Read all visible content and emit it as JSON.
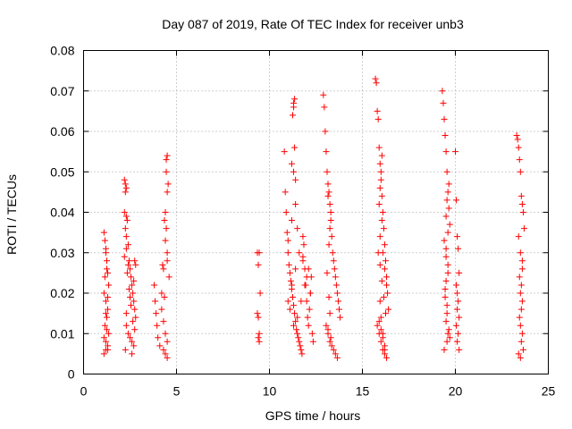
{
  "chart_data": {
    "type": "scatter",
    "title": "Day 087 of 2019, Rate Of TEC Index for receiver unb3",
    "xlabel": "GPS time / hours",
    "ylabel": "ROTI / TECUs",
    "xlim": [
      0,
      25
    ],
    "ylim": [
      0,
      0.08
    ],
    "xticks": [
      "0",
      "5",
      "10",
      "15",
      "20",
      "25"
    ],
    "yticks": [
      "0",
      "0.01",
      "0.02",
      "0.03",
      "0.04",
      "0.05",
      "0.06",
      "0.07",
      "0.08"
    ],
    "grid": true,
    "marker": "+",
    "marker_color": "#ff0000",
    "series": [
      {
        "x": [
          1.1,
          1.15,
          1.2,
          1.25,
          1.3,
          1.35,
          1.1,
          1.2,
          1.3,
          1.25,
          1.15,
          1.35,
          1.2,
          1.3,
          1.1,
          1.25,
          1.2,
          1.15,
          1.3,
          1.2,
          1.25,
          1.1,
          1.3,
          1.2,
          2.2,
          2.25,
          2.3,
          2.2,
          2.35,
          2.4,
          2.45,
          2.5,
          2.55,
          2.6,
          2.65,
          2.7,
          2.75,
          2.8,
          2.3,
          2.4,
          2.5,
          2.6,
          2.7,
          2.25,
          2.35,
          2.45,
          2.55,
          2.65,
          2.75,
          2.3,
          2.5,
          2.7,
          2.4,
          2.6,
          2.2,
          2.3,
          2.25,
          2.3,
          2.25,
          2.3,
          2.75,
          2.8,
          3.8,
          3.85,
          3.9,
          3.95,
          4.0,
          4.1,
          4.2,
          4.3,
          4.4,
          4.5,
          4.6,
          4.2,
          4.3,
          4.4,
          4.5,
          4.3,
          4.4,
          4.5,
          4.4,
          4.5,
          4.45,
          4.5,
          4.45,
          4.55,
          4.35,
          4.45,
          4.5,
          4.25,
          4.35,
          9.35,
          9.4,
          9.45,
          9.5,
          9.35,
          9.4,
          9.45,
          9.4,
          9.45,
          10.8,
          10.85,
          10.9,
          10.95,
          11.0,
          11.05,
          11.1,
          11.15,
          11.2,
          11.25,
          11.3,
          11.35,
          11.4,
          11.45,
          11.5,
          11.55,
          11.6,
          11.65,
          11.7,
          11.75,
          11.8,
          11.85,
          11.9,
          11.95,
          12.0,
          12.05,
          12.1,
          12.15,
          12.2,
          12.25,
          12.3,
          12.35,
          11.0,
          11.2,
          11.4,
          11.6,
          11.8,
          12.0,
          12.2,
          11.1,
          11.3,
          11.5,
          11.7,
          11.9,
          12.1,
          11.2,
          11.4,
          11.3,
          11.35,
          11.3,
          11.35,
          11.25,
          11.3,
          11.4,
          11.2,
          11.0,
          11.5,
          11.8,
          12.9,
          12.95,
          13.0,
          13.05,
          13.1,
          13.15,
          13.2,
          13.25,
          13.3,
          13.35,
          13.4,
          13.45,
          13.5,
          13.55,
          13.6,
          13.65,
          13.7,
          13.75,
          13.8,
          13.05,
          13.15,
          13.25,
          13.35,
          13.45,
          13.55,
          13.65,
          13.1,
          13.2,
          13.3,
          13.15,
          13.25,
          13.2,
          13.25,
          13.15,
          13.3,
          15.7,
          15.75,
          15.8,
          15.85,
          15.9,
          15.95,
          16.0,
          16.05,
          16.1,
          16.15,
          16.2,
          16.25,
          16.3,
          16.35,
          16.4,
          15.8,
          15.9,
          16.0,
          16.1,
          16.2,
          16.3,
          15.85,
          15.95,
          16.05,
          16.15,
          16.25,
          15.9,
          16.0,
          16.1,
          16.2,
          15.95,
          16.05,
          15.9,
          15.95,
          16.0,
          16.05,
          16.1,
          16.2,
          16.3,
          15.95,
          16.0,
          16.1,
          16.2,
          19.3,
          19.35,
          19.4,
          19.45,
          19.5,
          19.55,
          19.6,
          19.65,
          19.7,
          19.4,
          19.5,
          19.6,
          19.45,
          19.55,
          19.5,
          19.6,
          19.55,
          19.4,
          19.5,
          19.6,
          19.5,
          19.45,
          19.55,
          19.65,
          19.7,
          19.6,
          19.5,
          19.55,
          19.65,
          20.0,
          20.05,
          20.1,
          20.15,
          20.2,
          20.05,
          20.1,
          20.15,
          20.1,
          20.2,
          20.05,
          20.15,
          20.1,
          20.2,
          23.3,
          23.35,
          23.4,
          23.45,
          23.5,
          23.55,
          23.6,
          23.65,
          23.7,
          23.4,
          23.5,
          23.6,
          23.45,
          23.55,
          23.5,
          23.6,
          23.55,
          23.45,
          23.5,
          23.6,
          23.55,
          23.65,
          23.4,
          23.5,
          23.6
        ],
        "y": [
          0.035,
          0.033,
          0.031,
          0.028,
          0.025,
          0.022,
          0.02,
          0.018,
          0.016,
          0.014,
          0.012,
          0.01,
          0.008,
          0.006,
          0.005,
          0.026,
          0.03,
          0.024,
          0.019,
          0.015,
          0.011,
          0.009,
          0.007,
          0.006,
          0.048,
          0.047,
          0.046,
          0.04,
          0.038,
          0.032,
          0.028,
          0.026,
          0.024,
          0.022,
          0.02,
          0.018,
          0.016,
          0.014,
          0.012,
          0.01,
          0.009,
          0.008,
          0.007,
          0.006,
          0.025,
          0.021,
          0.017,
          0.013,
          0.011,
          0.015,
          0.019,
          0.023,
          0.027,
          0.005,
          0.029,
          0.034,
          0.045,
          0.039,
          0.036,
          0.031,
          0.028,
          0.027,
          0.022,
          0.018,
          0.015,
          0.012,
          0.009,
          0.007,
          0.02,
          0.026,
          0.033,
          0.028,
          0.024,
          0.016,
          0.013,
          0.01,
          0.008,
          0.006,
          0.005,
          0.004,
          0.04,
          0.045,
          0.053,
          0.054,
          0.05,
          0.047,
          0.038,
          0.036,
          0.03,
          0.027,
          0.019,
          0.03,
          0.027,
          0.03,
          0.02,
          0.015,
          0.014,
          0.01,
          0.009,
          0.008,
          0.055,
          0.045,
          0.04,
          0.035,
          0.03,
          0.027,
          0.025,
          0.023,
          0.021,
          0.019,
          0.017,
          0.015,
          0.013,
          0.011,
          0.01,
          0.009,
          0.008,
          0.007,
          0.006,
          0.005,
          0.028,
          0.032,
          0.026,
          0.022,
          0.018,
          0.014,
          0.012,
          0.016,
          0.02,
          0.024,
          0.01,
          0.008,
          0.018,
          0.022,
          0.026,
          0.03,
          0.034,
          0.024,
          0.02,
          0.016,
          0.012,
          0.014,
          0.018,
          0.022,
          0.026,
          0.038,
          0.042,
          0.05,
          0.056,
          0.066,
          0.068,
          0.064,
          0.067,
          0.048,
          0.052,
          0.033,
          0.036,
          0.029,
          0.069,
          0.066,
          0.06,
          0.055,
          0.05,
          0.047,
          0.045,
          0.042,
          0.038,
          0.034,
          0.03,
          0.028,
          0.026,
          0.024,
          0.022,
          0.02,
          0.018,
          0.016,
          0.014,
          0.012,
          0.01,
          0.008,
          0.007,
          0.006,
          0.005,
          0.004,
          0.025,
          0.032,
          0.04,
          0.044,
          0.036,
          0.019,
          0.015,
          0.011,
          0.009,
          0.073,
          0.072,
          0.065,
          0.063,
          0.056,
          0.052,
          0.048,
          0.044,
          0.04,
          0.036,
          0.032,
          0.028,
          0.024,
          0.02,
          0.016,
          0.012,
          0.01,
          0.008,
          0.006,
          0.005,
          0.004,
          0.03,
          0.027,
          0.023,
          0.019,
          0.015,
          0.013,
          0.011,
          0.009,
          0.007,
          0.034,
          0.038,
          0.042,
          0.046,
          0.05,
          0.054,
          0.03,
          0.026,
          0.022,
          0.018,
          0.014,
          0.01,
          0.006,
          0.07,
          0.067,
          0.063,
          0.059,
          0.055,
          0.05,
          0.045,
          0.041,
          0.037,
          0.033,
          0.029,
          0.025,
          0.021,
          0.017,
          0.013,
          0.01,
          0.008,
          0.006,
          0.031,
          0.027,
          0.023,
          0.019,
          0.015,
          0.011,
          0.009,
          0.035,
          0.039,
          0.043,
          0.047,
          0.055,
          0.043,
          0.034,
          0.031,
          0.025,
          0.022,
          0.02,
          0.018,
          0.016,
          0.014,
          0.012,
          0.01,
          0.008,
          0.006,
          0.059,
          0.058,
          0.056,
          0.053,
          0.05,
          0.044,
          0.042,
          0.04,
          0.036,
          0.034,
          0.03,
          0.028,
          0.024,
          0.022,
          0.02,
          0.018,
          0.016,
          0.014,
          0.012,
          0.01,
          0.008,
          0.006,
          0.005,
          0.004,
          0.026
        ]
      }
    ]
  }
}
